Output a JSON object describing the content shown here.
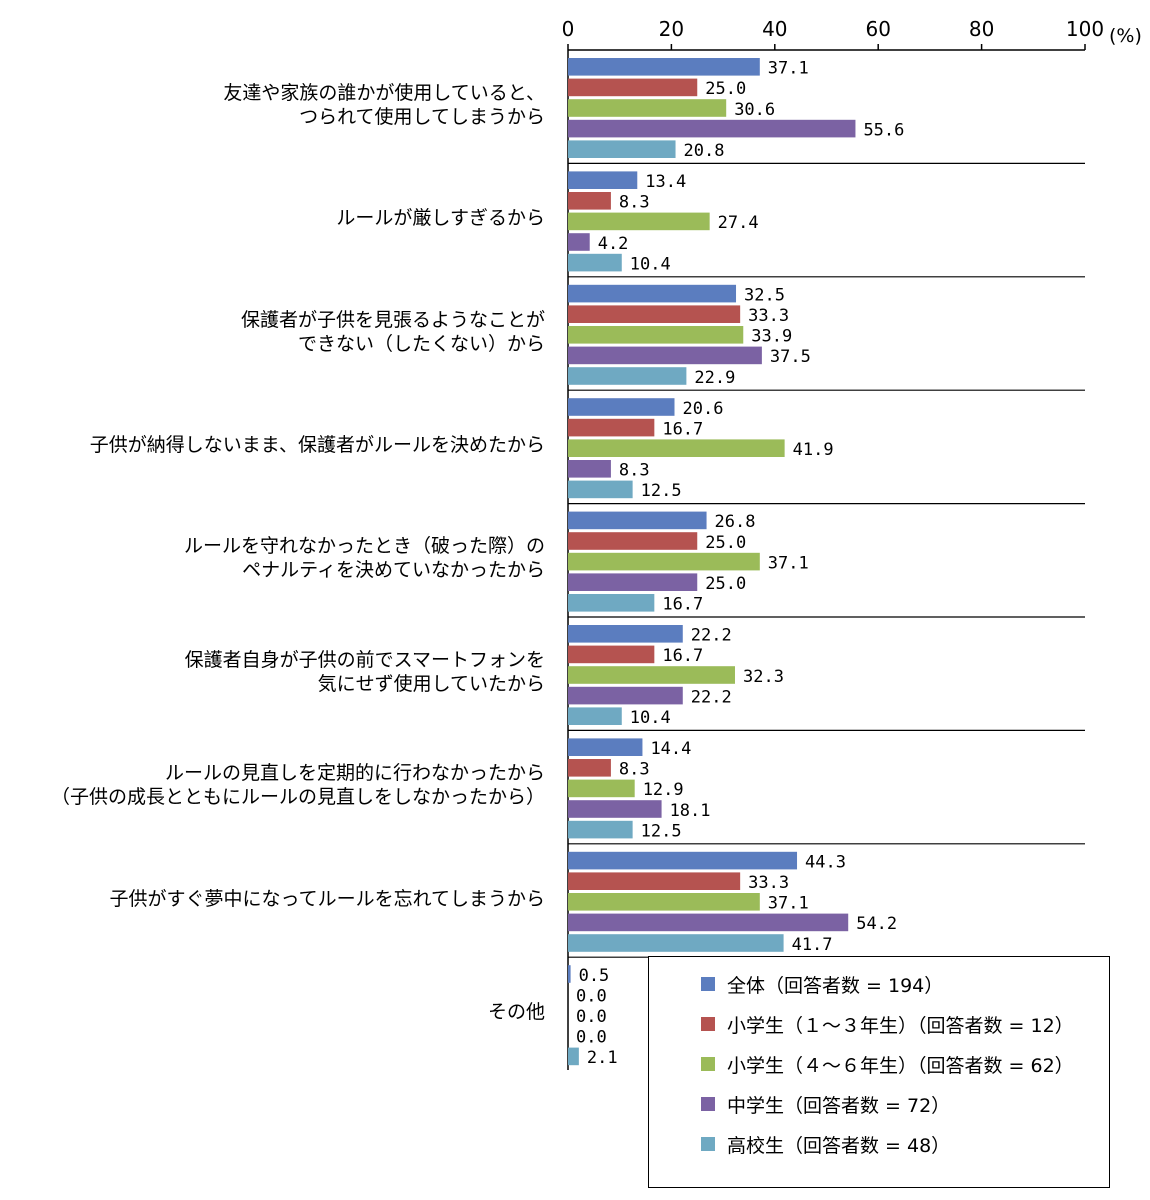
{
  "chart_data": {
    "type": "bar",
    "orientation": "horizontal",
    "unit": "(%)",
    "xlim": [
      0,
      100
    ],
    "xticks": [
      0,
      20,
      40,
      60,
      80,
      100
    ],
    "categories": [
      [
        "友達や家族の誰かが使用していると、",
        "つられて使用してしまうから"
      ],
      [
        "ルールが厳しすぎるから"
      ],
      [
        "保護者が子供を見張るようなことが",
        "できない（したくない）から"
      ],
      [
        "子供が納得しないまま、保護者がルールを決めたから"
      ],
      [
        "ルールを守れなかったとき（破った際）の",
        "ペナルティを決めていなかったから"
      ],
      [
        "保護者自身が子供の前でスマートフォンを",
        "気にせず使用していたから"
      ],
      [
        "ルールの見直しを定期的に行わなかったから",
        "（子供の成長とともにルールの見直しをしなかったから）"
      ],
      [
        "子供がすぐ夢中になってルールを忘れてしまうから"
      ],
      [
        "その他"
      ]
    ],
    "series": [
      {
        "name": "全体（回答者数 = 194）",
        "color": "#5b7dbf",
        "values": [
          37.1,
          13.4,
          32.5,
          20.6,
          26.8,
          22.2,
          14.4,
          44.3,
          0.5
        ]
      },
      {
        "name": "小学生（１～３年生）（回答者数 = 12）",
        "color": "#b55350",
        "values": [
          25.0,
          8.3,
          33.3,
          16.7,
          25.0,
          16.7,
          8.3,
          33.3,
          0.0
        ]
      },
      {
        "name": "小学生（４～６年生）（回答者数 = 62）",
        "color": "#9bbb59",
        "values": [
          30.6,
          27.4,
          33.9,
          41.9,
          37.1,
          32.3,
          12.9,
          37.1,
          0.0
        ]
      },
      {
        "name": "中学生（回答者数 = 72）",
        "color": "#7b62a3",
        "values": [
          55.6,
          4.2,
          37.5,
          8.3,
          25.0,
          22.2,
          18.1,
          54.2,
          0.0
        ]
      },
      {
        "name": "高校生（回答者数 = 48）",
        "color": "#6fa9c2",
        "values": [
          20.8,
          10.4,
          22.9,
          12.5,
          16.7,
          10.4,
          12.5,
          41.7,
          2.1
        ]
      }
    ],
    "legend_position": "bottom-right",
    "grid": false
  }
}
